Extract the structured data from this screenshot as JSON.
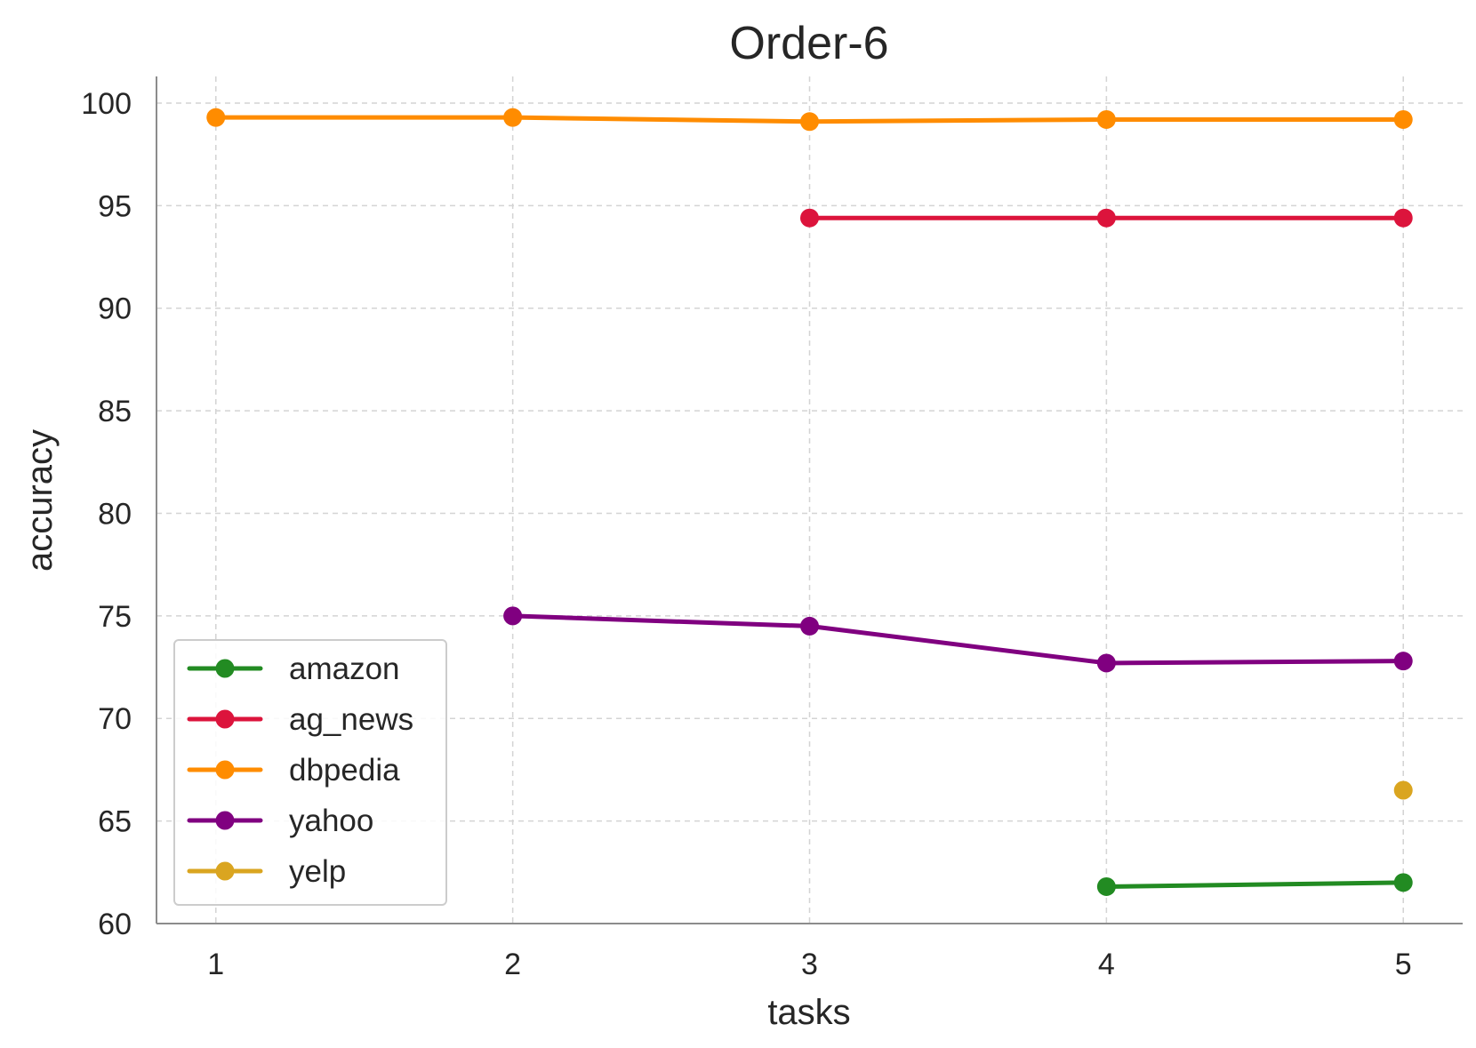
{
  "chart_data": {
    "type": "line",
    "title": "Order-6",
    "xlabel": "tasks",
    "ylabel": "accuracy",
    "x": [
      1,
      2,
      3,
      4,
      5
    ],
    "x_tick_labels": [
      "1",
      "2",
      "3",
      "4",
      "5"
    ],
    "xlim": [
      0.8,
      5.2
    ],
    "ylim": [
      60,
      101.3
    ],
    "y_ticks": [
      60,
      65,
      70,
      75,
      80,
      85,
      90,
      95,
      100
    ],
    "y_tick_labels": [
      "60",
      "65",
      "70",
      "75",
      "80",
      "85",
      "90",
      "95",
      "100"
    ],
    "grid": true,
    "legend_position": "lower-left",
    "series": [
      {
        "name": "amazon",
        "color": "#228B22",
        "values": [
          null,
          null,
          null,
          61.8,
          62.0
        ]
      },
      {
        "name": "ag_news",
        "color": "#DC143C",
        "values": [
          null,
          null,
          94.4,
          94.4,
          94.4
        ]
      },
      {
        "name": "dbpedia",
        "color": "#FF8C00",
        "values": [
          99.3,
          99.3,
          99.1,
          99.2,
          99.2
        ]
      },
      {
        "name": "yahoo",
        "color": "#800080",
        "values": [
          null,
          75.0,
          74.5,
          72.7,
          72.8
        ]
      },
      {
        "name": "yelp",
        "color": "#DAA520",
        "values": [
          null,
          null,
          null,
          null,
          66.5
        ]
      }
    ]
  }
}
